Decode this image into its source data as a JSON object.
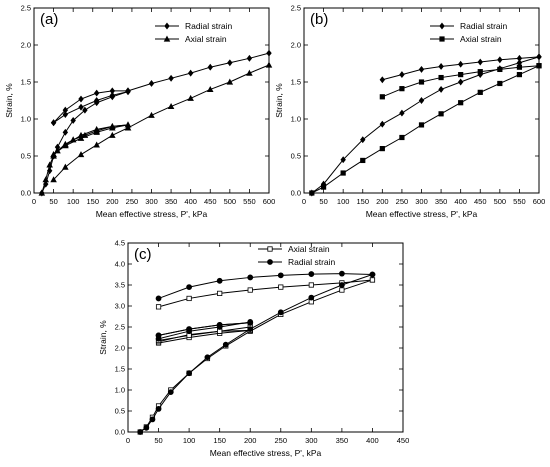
{
  "chart_data": [
    {
      "type": "line",
      "panel_label": "(a)",
      "xlabel": "Mean effective stress, P', kPa",
      "ylabel": "Strain, %",
      "xlim": [
        0,
        600
      ],
      "ylim": [
        0,
        2.5
      ],
      "xticks": [
        0,
        50,
        100,
        150,
        200,
        250,
        300,
        350,
        400,
        450,
        500,
        550,
        600
      ],
      "yticks": [
        0,
        0.5,
        1.0,
        1.5,
        2.0,
        2.5
      ],
      "ytick_labels": [
        "0.0",
        "0.5",
        "1.0",
        "1.5",
        "2.0",
        "2.5"
      ],
      "legend_position": "top-right",
      "series": [
        {
          "name": "Radial strain",
          "marker": "diamond",
          "filled": true,
          "loops": [
            {
              "x": [
                20,
                30,
                40,
                50,
                60,
                80,
                100,
                130,
                160,
                200,
                240
              ],
              "y": [
                0,
                0.12,
                0.3,
                0.5,
                0.62,
                0.82,
                0.98,
                1.12,
                1.22,
                1.3,
                1.37
              ]
            },
            {
              "x": [
                240,
                200,
                160,
                120,
                80,
                50
              ],
              "y": [
                1.37,
                1.32,
                1.25,
                1.16,
                1.06,
                0.95
              ]
            },
            {
              "x": [
                50,
                80,
                120,
                160,
                200,
                240
              ],
              "y": [
                0.95,
                1.12,
                1.27,
                1.35,
                1.38,
                1.38
              ]
            },
            {
              "x": [
                240,
                300,
                350,
                400,
                450,
                500,
                550,
                600
              ],
              "y": [
                1.38,
                1.48,
                1.55,
                1.62,
                1.7,
                1.76,
                1.82,
                1.89
              ]
            }
          ]
        },
        {
          "name": "Axial strain",
          "marker": "triangle",
          "filled": true,
          "loops": [
            {
              "x": [
                20,
                30,
                40,
                50,
                60,
                80,
                100,
                130,
                160,
                200,
                240
              ],
              "y": [
                0,
                0.18,
                0.38,
                0.5,
                0.57,
                0.66,
                0.72,
                0.78,
                0.84,
                0.9,
                0.92
              ]
            },
            {
              "x": [
                240,
                200,
                160,
                120,
                80,
                50
              ],
              "y": [
                0.92,
                0.88,
                0.82,
                0.74,
                0.64,
                0.52
              ]
            },
            {
              "x": [
                50,
                80,
                120,
                160,
                200,
                240
              ],
              "y": [
                0.52,
                0.65,
                0.78,
                0.86,
                0.9,
                0.92
              ]
            },
            {
              "x": [
                50,
                80,
                120,
                160,
                200,
                240
              ],
              "y": [
                0.18,
                0.35,
                0.52,
                0.65,
                0.78,
                0.88
              ]
            },
            {
              "x": [
                240,
                300,
                350,
                400,
                450,
                500,
                550,
                600
              ],
              "y": [
                0.88,
                1.05,
                1.17,
                1.28,
                1.4,
                1.5,
                1.62,
                1.73
              ]
            }
          ]
        }
      ]
    },
    {
      "type": "line",
      "panel_label": "(b)",
      "xlabel": "Mean effective stress, P', kPa",
      "ylabel": "Strain, %",
      "xlim": [
        0,
        600
      ],
      "ylim": [
        0,
        2.5
      ],
      "xticks": [
        0,
        50,
        100,
        150,
        200,
        250,
        300,
        350,
        400,
        450,
        500,
        550,
        600
      ],
      "yticks": [
        0,
        0.5,
        1.0,
        1.5,
        2.0,
        2.5
      ],
      "ytick_labels": [
        "0.0",
        "0.5",
        "1.0",
        "1.5",
        "2.0",
        "2.5"
      ],
      "legend_position": "top-right",
      "series": [
        {
          "name": "Radial strain",
          "marker": "diamond",
          "filled": true,
          "loops": [
            {
              "x": [
                20,
                50,
                100,
                150,
                200,
                250,
                300,
                350,
                400,
                450,
                500,
                550,
                600
              ],
              "y": [
                0,
                0.12,
                0.45,
                0.72,
                0.93,
                1.08,
                1.25,
                1.4,
                1.5,
                1.6,
                1.68,
                1.76,
                1.84
              ]
            },
            {
              "x": [
                600,
                550,
                500,
                450,
                400,
                350,
                300,
                250,
                200
              ],
              "y": [
                1.84,
                1.82,
                1.8,
                1.77,
                1.74,
                1.71,
                1.67,
                1.6,
                1.53
              ]
            }
          ]
        },
        {
          "name": "Axial strain",
          "marker": "square",
          "filled": true,
          "loops": [
            {
              "x": [
                20,
                50,
                100,
                150,
                200,
                250,
                300,
                350,
                400,
                450,
                500,
                550,
                600
              ],
              "y": [
                0,
                0.08,
                0.27,
                0.44,
                0.6,
                0.75,
                0.92,
                1.07,
                1.22,
                1.36,
                1.48,
                1.6,
                1.72
              ]
            },
            {
              "x": [
                600,
                550,
                500,
                450,
                400,
                350,
                300,
                250,
                200
              ],
              "y": [
                1.72,
                1.7,
                1.67,
                1.64,
                1.6,
                1.56,
                1.5,
                1.41,
                1.3
              ]
            }
          ]
        }
      ]
    },
    {
      "type": "line",
      "panel_label": "(c)",
      "xlabel": "Mean effective stress, P', kPa",
      "ylabel": "Strain, %",
      "xlim": [
        0,
        450
      ],
      "ylim": [
        0,
        4.5
      ],
      "xticks": [
        0,
        50,
        100,
        150,
        200,
        250,
        300,
        350,
        400,
        450
      ],
      "yticks": [
        0,
        0.5,
        1.0,
        1.5,
        2.0,
        2.5,
        3.0,
        3.5,
        4.0,
        4.5
      ],
      "ytick_labels": [
        "0.0",
        "0.5",
        "1.0",
        "1.5",
        "2.0",
        "2.5",
        "3.0",
        "3.5",
        "4.0",
        "4.5"
      ],
      "legend_position": "top-right",
      "series": [
        {
          "name": "Axial strain",
          "marker": "square",
          "filled": false,
          "loops": [
            {
              "x": [
                20,
                30,
                40,
                50,
                70,
                100,
                130,
                160,
                200,
                250,
                300,
                350,
                400
              ],
              "y": [
                0,
                0.12,
                0.35,
                0.62,
                1.0,
                1.4,
                1.75,
                2.05,
                2.4,
                2.8,
                3.1,
                3.38,
                3.62
              ]
            },
            {
              "x": [
                400,
                350,
                300,
                250,
                200,
                150,
                100,
                50
              ],
              "y": [
                3.62,
                3.55,
                3.5,
                3.45,
                3.38,
                3.3,
                3.18,
                2.98
              ]
            },
            {
              "x": [
                50,
                100,
                150,
                200
              ],
              "y": [
                2.12,
                2.25,
                2.35,
                2.42
              ]
            },
            {
              "x": [
                200,
                150,
                100,
                50
              ],
              "y": [
                2.42,
                2.4,
                2.32,
                2.15
              ]
            },
            {
              "x": [
                50,
                100,
                150,
                200
              ],
              "y": [
                2.18,
                2.3,
                2.4,
                2.5
              ]
            }
          ]
        },
        {
          "name": "Radial strain",
          "marker": "circle",
          "filled": true,
          "loops": [
            {
              "x": [
                20,
                30,
                40,
                50,
                70,
                100,
                130,
                160,
                200,
                250,
                300,
                350,
                400
              ],
              "y": [
                0,
                0.1,
                0.3,
                0.55,
                0.95,
                1.4,
                1.78,
                2.08,
                2.45,
                2.85,
                3.2,
                3.5,
                3.75
              ]
            },
            {
              "x": [
                400,
                350,
                300,
                250,
                200,
                150,
                100,
                50
              ],
              "y": [
                3.75,
                3.77,
                3.76,
                3.73,
                3.68,
                3.6,
                3.45,
                3.18
              ]
            },
            {
              "x": [
                50,
                100,
                150,
                200
              ],
              "y": [
                2.3,
                2.45,
                2.55,
                2.6
              ]
            },
            {
              "x": [
                200,
                150,
                100,
                50
              ],
              "y": [
                2.6,
                2.55,
                2.45,
                2.3
              ]
            },
            {
              "x": [
                50,
                100,
                150,
                200
              ],
              "y": [
                2.22,
                2.4,
                2.5,
                2.62
              ]
            }
          ]
        }
      ]
    }
  ]
}
